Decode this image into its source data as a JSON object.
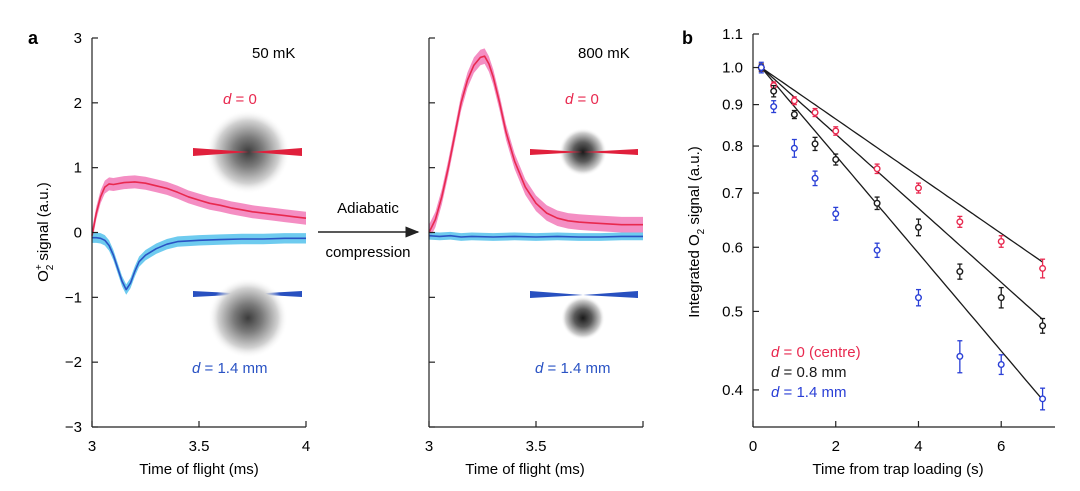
{
  "figure": {
    "panel_a_label": "a",
    "panel_b_label": "b",
    "arrow_text_1": "Adiabatic",
    "arrow_text_2": "compression"
  },
  "chart_data": [
    {
      "type": "line",
      "panel": "a-left",
      "title": "50 mK",
      "xlabel": "Time of flight (ms)",
      "ylabel": "O2+ signal (a.u.)",
      "ylabel_base": "O",
      "ylabel_sub": "2",
      "ylabel_sup": "+",
      "ylabel_rest": " signal (a.u.)",
      "xlim": [
        3,
        4
      ],
      "ylim": [
        -3,
        3
      ],
      "xticks": [
        "3",
        "3.5",
        "4"
      ],
      "yticks": [
        "3",
        "2",
        "1",
        "0",
        "−1",
        "−2",
        "−3"
      ],
      "label_red_var": "d",
      "label_red_val": " = 0",
      "label_blue_var": "d",
      "label_blue_val": " = 1.4 mm",
      "series": [
        {
          "name": "d = 0",
          "color": "#e8294f",
          "band_color": "#f27ab8",
          "x": [
            3.0,
            3.02,
            3.04,
            3.06,
            3.08,
            3.1,
            3.15,
            3.2,
            3.25,
            3.3,
            3.35,
            3.4,
            3.45,
            3.5,
            3.55,
            3.6,
            3.65,
            3.7,
            3.75,
            3.8,
            3.85,
            3.9,
            3.95,
            4.0
          ],
          "y": [
            -0.05,
            0.3,
            0.55,
            0.7,
            0.75,
            0.74,
            0.77,
            0.78,
            0.76,
            0.72,
            0.68,
            0.62,
            0.55,
            0.5,
            0.45,
            0.42,
            0.38,
            0.35,
            0.32,
            0.3,
            0.28,
            0.26,
            0.24,
            0.22
          ],
          "band": 0.1
        },
        {
          "name": "d = 1.4 mm",
          "color": "#2a53c4",
          "band_color": "#55c2ec",
          "x": [
            3.0,
            3.02,
            3.04,
            3.06,
            3.08,
            3.1,
            3.12,
            3.14,
            3.16,
            3.18,
            3.2,
            3.22,
            3.25,
            3.3,
            3.35,
            3.4,
            3.5,
            3.6,
            3.7,
            3.8,
            3.9,
            4.0
          ],
          "y": [
            -0.08,
            -0.08,
            -0.09,
            -0.12,
            -0.2,
            -0.35,
            -0.55,
            -0.75,
            -0.88,
            -0.78,
            -0.6,
            -0.45,
            -0.35,
            -0.25,
            -0.18,
            -0.14,
            -0.12,
            -0.11,
            -0.1,
            -0.1,
            -0.09,
            -0.09
          ],
          "band": 0.08
        }
      ]
    },
    {
      "type": "line",
      "panel": "a-right",
      "title": "800 mK",
      "xlabel": "Time of flight (ms)",
      "xlim": [
        3,
        4
      ],
      "ylim": [
        -3,
        3
      ],
      "xticks": [
        "3",
        "3.5"
      ],
      "label_red_var": "d",
      "label_red_val": " = 0",
      "label_blue_var": "d",
      "label_blue_val": " = 1.4 mm",
      "series": [
        {
          "name": "d = 0",
          "color": "#e8294f",
          "band_color": "#f27ab8",
          "x": [
            3.0,
            3.03,
            3.06,
            3.09,
            3.12,
            3.15,
            3.18,
            3.21,
            3.24,
            3.26,
            3.28,
            3.3,
            3.33,
            3.36,
            3.4,
            3.45,
            3.5,
            3.55,
            3.6,
            3.65,
            3.7,
            3.75,
            3.8,
            3.85,
            3.9,
            3.95,
            4.0
          ],
          "y": [
            0.0,
            0.2,
            0.55,
            1.0,
            1.5,
            2.0,
            2.35,
            2.58,
            2.7,
            2.72,
            2.6,
            2.4,
            2.0,
            1.55,
            1.1,
            0.7,
            0.45,
            0.3,
            0.22,
            0.18,
            0.16,
            0.15,
            0.14,
            0.13,
            0.12,
            0.12,
            0.12
          ],
          "band": 0.12
        },
        {
          "name": "d = 1.4 mm",
          "color": "#2a53c4",
          "band_color": "#55c2ec",
          "x": [
            3.0,
            3.05,
            3.1,
            3.15,
            3.2,
            3.3,
            3.4,
            3.5,
            3.6,
            3.7,
            3.8,
            3.9,
            4.0
          ],
          "y": [
            -0.05,
            -0.06,
            -0.05,
            -0.07,
            -0.06,
            -0.07,
            -0.06,
            -0.07,
            -0.06,
            -0.07,
            -0.07,
            -0.06,
            -0.06
          ],
          "band": 0.06
        }
      ]
    },
    {
      "type": "scatter",
      "panel": "b",
      "xlabel": "Time from trap loading (s)",
      "ylabel": "Integrated O2 signal (a.u.)",
      "ylabel_pre": "Integrated O",
      "ylabel_sub": "2",
      "ylabel_post": " signal (a.u.)",
      "yscale": "log",
      "xlim": [
        0,
        7.3
      ],
      "ylim": [
        0.36,
        1.1
      ],
      "xticks": [
        0,
        2,
        4,
        6
      ],
      "xtick_labels": [
        "0",
        "2",
        "4",
        "6"
      ],
      "yticks": [
        0.4,
        0.5,
        0.6,
        0.7,
        0.8,
        0.9,
        1.0,
        1.1
      ],
      "ytick_labels": [
        "0.4",
        "0.5",
        "0.6",
        "0.7",
        "0.8",
        "0.9",
        "1.0",
        "1.1"
      ],
      "legend": [
        {
          "var": "d",
          "text": " = 0 (centre)",
          "color": "#e8294f"
        },
        {
          "var": "d",
          "text": " = 0.8 mm",
          "color": "#1a1a1a"
        },
        {
          "var": "d",
          "text": " = 1.4 mm",
          "color": "#2a3fd6"
        }
      ],
      "series": [
        {
          "name": "d = 0 (centre)",
          "color": "#e8294f",
          "x": [
            0.2,
            0.5,
            1.0,
            1.5,
            2.0,
            3.0,
            4.0,
            5.0,
            6.0,
            7.0
          ],
          "y": [
            1.0,
            0.95,
            0.91,
            0.88,
            0.835,
            0.75,
            0.71,
            0.645,
            0.61,
            0.565
          ],
          "err": [
            0.01,
            0.01,
            0.01,
            0.01,
            0.01,
            0.01,
            0.01,
            0.01,
            0.01,
            0.015
          ],
          "fit_tau": 12.3
        },
        {
          "name": "d = 0.8 mm",
          "color": "#1a1a1a",
          "x": [
            0.2,
            0.5,
            1.0,
            1.5,
            2.0,
            3.0,
            4.0,
            5.0,
            6.0,
            7.0
          ],
          "y": [
            1.0,
            0.935,
            0.875,
            0.805,
            0.77,
            0.68,
            0.635,
            0.56,
            0.52,
            0.48
          ],
          "err": [
            0.01,
            0.015,
            0.01,
            0.015,
            0.012,
            0.012,
            0.015,
            0.012,
            0.015,
            0.01
          ],
          "fit_tau": 9.5
        },
        {
          "name": "d = 1.4 mm",
          "color": "#2a3fd6",
          "x": [
            0.2,
            0.5,
            1.0,
            1.5,
            2.0,
            3.0,
            4.0,
            5.0,
            6.0,
            7.0
          ],
          "y": [
            1.0,
            0.895,
            0.795,
            0.73,
            0.66,
            0.595,
            0.52,
            0.44,
            0.43,
            0.39
          ],
          "err": [
            0.015,
            0.015,
            0.02,
            0.015,
            0.012,
            0.012,
            0.012,
            0.02,
            0.012,
            0.012
          ],
          "fit_tau": 7.2
        }
      ]
    }
  ]
}
